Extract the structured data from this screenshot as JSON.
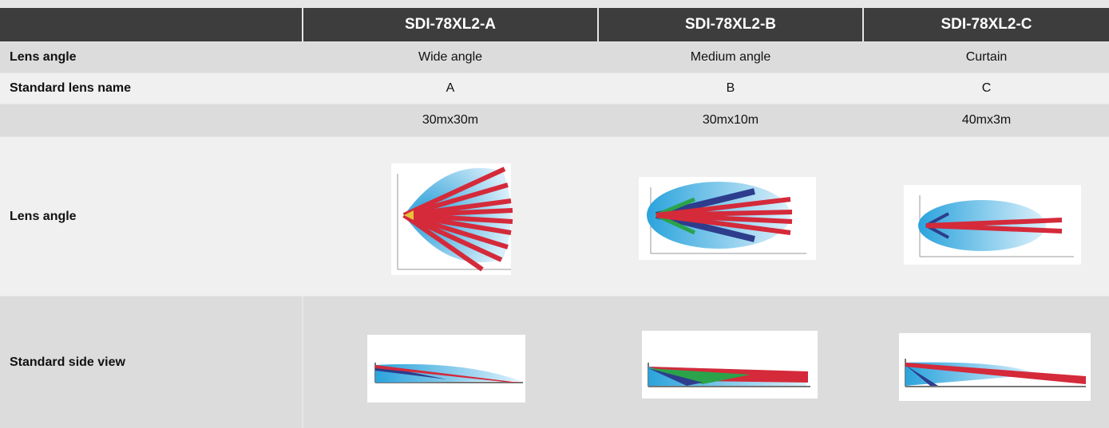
{
  "table": {
    "columns": [
      "SDI-78XL2-A",
      "SDI-78XL2-B",
      "SDI-78XL2-C"
    ],
    "rows": [
      {
        "label": "Lens angle",
        "cells": [
          "Wide angle",
          "Medium angle",
          "Curtain"
        ]
      },
      {
        "label": "Standard lens name",
        "cells": [
          "A",
          "B",
          "C"
        ]
      },
      {
        "cells": [
          "30mx30m",
          "30mx10m",
          "40mx3m"
        ]
      }
    ],
    "image_rows": [
      {
        "label": "Lens angle"
      },
      {
        "label": "Standard side view"
      }
    ]
  }
}
